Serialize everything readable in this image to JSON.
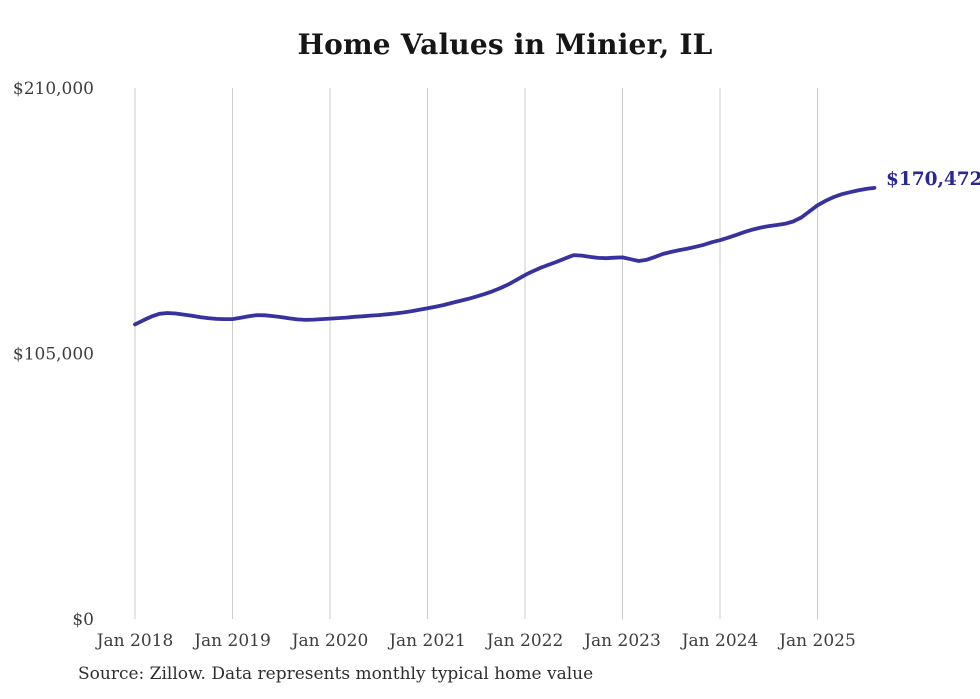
{
  "chart_data": {
    "type": "line",
    "title": "Home Values in Minier, IL",
    "source": "Source: Zillow. Data represents monthly typical home value",
    "series_name": "Monthly typical home value",
    "end_label": "$170,472",
    "latest_value": 170472,
    "ylim": [
      0,
      210000
    ],
    "y_ticks": [
      {
        "value": 0,
        "label": "$0"
      },
      {
        "value": 105000,
        "label": "$105,000"
      },
      {
        "value": 210000,
        "label": "$210,000"
      }
    ],
    "x_tick_labels": [
      "Jan 2018",
      "Jan 2019",
      "Jan 2020",
      "Jan 2021",
      "Jan 2022",
      "Jan 2023",
      "Jan 2024",
      "Jan 2025"
    ],
    "grid": "vertical-only",
    "legend": "none",
    "line_color": "#38329E",
    "end_label_color": "#2B2694",
    "grid_color": "#CDCDCD",
    "x": [
      "2018-01",
      "2018-02",
      "2018-03",
      "2018-04",
      "2018-05",
      "2018-06",
      "2018-07",
      "2018-08",
      "2018-09",
      "2018-10",
      "2018-11",
      "2018-12",
      "2019-01",
      "2019-02",
      "2019-03",
      "2019-04",
      "2019-05",
      "2019-06",
      "2019-07",
      "2019-08",
      "2019-09",
      "2019-10",
      "2019-11",
      "2019-12",
      "2020-01",
      "2020-02",
      "2020-03",
      "2020-04",
      "2020-05",
      "2020-06",
      "2020-07",
      "2020-08",
      "2020-09",
      "2020-10",
      "2020-11",
      "2020-12",
      "2021-01",
      "2021-02",
      "2021-03",
      "2021-04",
      "2021-05",
      "2021-06",
      "2021-07",
      "2021-08",
      "2021-09",
      "2021-10",
      "2021-11",
      "2021-12",
      "2022-01",
      "2022-02",
      "2022-03",
      "2022-04",
      "2022-05",
      "2022-06",
      "2022-07",
      "2022-08",
      "2022-09",
      "2022-10",
      "2022-11",
      "2022-12",
      "2023-01",
      "2023-02",
      "2023-03",
      "2023-04",
      "2023-05",
      "2023-06",
      "2023-07",
      "2023-08",
      "2023-09",
      "2023-10",
      "2023-11",
      "2023-12",
      "2024-01",
      "2024-02",
      "2024-03",
      "2024-04",
      "2024-05",
      "2024-06",
      "2024-07",
      "2024-08",
      "2024-09",
      "2024-10",
      "2024-11",
      "2024-12",
      "2025-01",
      "2025-02",
      "2025-03",
      "2025-04",
      "2025-05",
      "2025-06",
      "2025-07",
      "2025-08"
    ],
    "values": [
      116500,
      118100,
      119600,
      120700,
      121000,
      120800,
      120400,
      119900,
      119400,
      119000,
      118700,
      118600,
      118600,
      119100,
      119700,
      120200,
      120100,
      119800,
      119400,
      118900,
      118500,
      118300,
      118400,
      118600,
      118800,
      119000,
      119200,
      119500,
      119700,
      120000,
      120200,
      120500,
      120800,
      121200,
      121700,
      122300,
      122900,
      123500,
      124200,
      125000,
      125800,
      126600,
      127500,
      128500,
      129600,
      130900,
      132400,
      134200,
      136000,
      137600,
      139000,
      140200,
      141400,
      142700,
      143900,
      143700,
      143200,
      142800,
      142700,
      142900,
      143000,
      142300,
      141600,
      142100,
      143200,
      144400,
      145200,
      145900,
      146500,
      147200,
      148000,
      149000,
      149800,
      150800,
      151900,
      153000,
      154000,
      154800,
      155400,
      155800,
      156300,
      157200,
      158800,
      161200,
      163600,
      165400,
      166900,
      168000,
      168800,
      169500,
      170100,
      170472
    ]
  }
}
